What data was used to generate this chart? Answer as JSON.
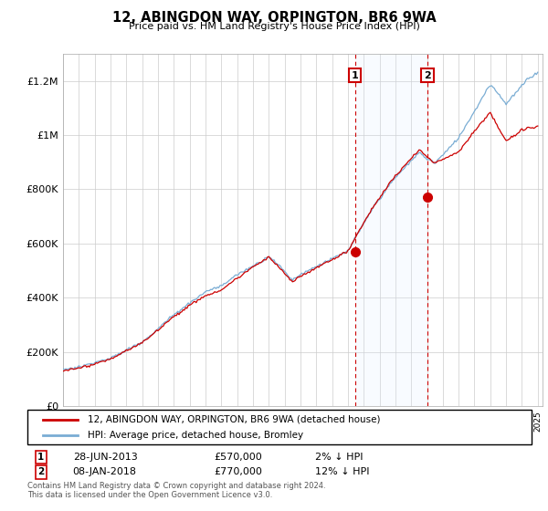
{
  "title": "12, ABINGDON WAY, ORPINGTON, BR6 9WA",
  "subtitle": "Price paid vs. HM Land Registry's House Price Index (HPI)",
  "legend_line1": "12, ABINGDON WAY, ORPINGTON, BR6 9WA (detached house)",
  "legend_line2": "HPI: Average price, detached house, Bromley",
  "sale1_date": "28-JUN-2013",
  "sale1_price_str": "£570,000",
  "sale1_note": "2% ↓ HPI",
  "sale1_price": 570000,
  "sale1_year": 2013.458,
  "sale2_date": "08-JAN-2018",
  "sale2_price_str": "£770,000",
  "sale2_note": "12% ↓ HPI",
  "sale2_price": 770000,
  "sale2_year": 2018.025,
  "footer": "Contains HM Land Registry data © Crown copyright and database right 2024.\nThis data is licensed under the Open Government Licence v3.0.",
  "hpi_color": "#7aadd4",
  "price_color": "#cc0000",
  "annotation_color": "#cc0000",
  "shade_color": "#ddeeff",
  "ylim": [
    0,
    1300000
  ],
  "yticks": [
    0,
    200000,
    400000,
    600000,
    800000,
    1000000,
    1200000
  ],
  "ytick_labels": [
    "£0",
    "£200K",
    "£400K",
    "£600K",
    "£800K",
    "£1M",
    "£1.2M"
  ],
  "xstart": 1995,
  "xend": 2025
}
